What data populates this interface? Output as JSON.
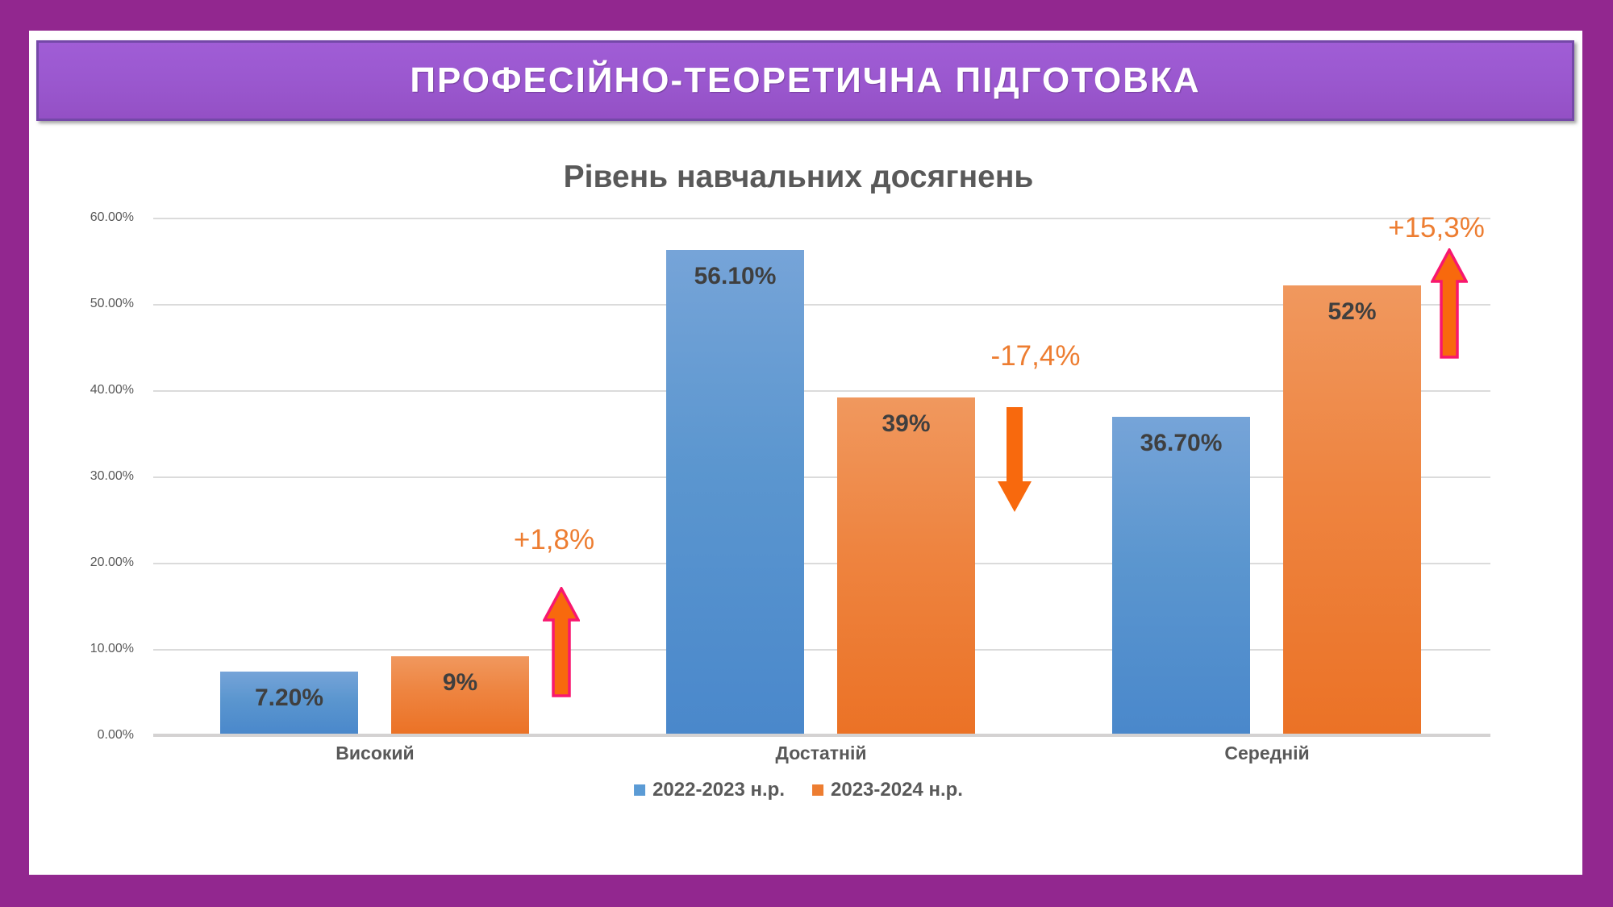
{
  "banner": {
    "title": "ПРОФЕСІЙНО-ТЕОРЕТИЧНА ПІДГОТОВКА"
  },
  "chart_data": {
    "type": "bar",
    "title": "Рівень навчальних досягнень",
    "categories": [
      "Високий",
      "Достатній",
      "Середній"
    ],
    "series": [
      {
        "name": "2022-2023 н.р.",
        "color": "#5B9BD5",
        "values": [
          7.2,
          56.1,
          36.7
        ],
        "labels": [
          "7.20%",
          "56.10%",
          "36.70%"
        ]
      },
      {
        "name": "2023-2024 н.р.",
        "color": "#ED7D31",
        "values": [
          9,
          39,
          52
        ],
        "labels": [
          "9%",
          "39%",
          "52%"
        ]
      }
    ],
    "annotations": [
      {
        "text": "+1,8%",
        "direction": "up",
        "outlined": true,
        "category": "Високий"
      },
      {
        "text": "-17,4%",
        "direction": "down",
        "outlined": false,
        "category": "Достатній"
      },
      {
        "text": "+15,3%",
        "direction": "up",
        "outlined": true,
        "category": "Середній"
      }
    ],
    "y_tick_labels": [
      "60.00%",
      "50.00%",
      "40.00%",
      "30.00%",
      "20.00%",
      "10.00%",
      "0.00%"
    ],
    "ylim": [
      0,
      60
    ],
    "xlabel": "",
    "ylabel": "",
    "grid": true,
    "legend_position": "bottom",
    "colors": {
      "annotation_text": "#ED7D31",
      "arrow_fill": "#F8690D",
      "arrow_outline": "#F8176E",
      "frame": "#92278F",
      "banner_fill": "#9A57CE"
    }
  }
}
